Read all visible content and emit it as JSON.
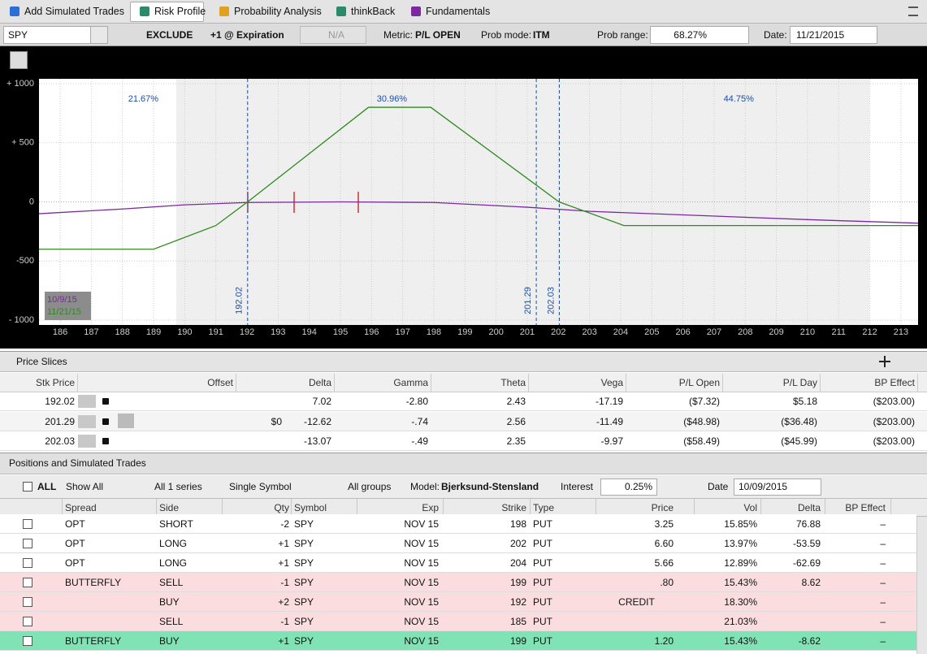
{
  "tabs": [
    "Add Simulated Trades",
    "Risk Profile",
    "Probability Analysis",
    "thinkBack",
    "Fundamentals"
  ],
  "controls": {
    "symbol": "SPY",
    "exclude": "EXCLUDE",
    "expiration": "+1 @ Expiration",
    "step": "N/A",
    "metric_label": "Metric:",
    "metric": "P/L OPEN",
    "prob_mode_label": "Prob mode:",
    "prob_mode": "ITM",
    "prob_range_label": "Prob range:",
    "prob_range": "68.27%",
    "date_label": "Date:",
    "date": "11/21/2015"
  },
  "chart_data": {
    "type": "line",
    "xlim": [
      185.32,
      213.55
    ],
    "xticks": [
      186,
      187,
      188,
      189,
      190,
      191,
      192,
      193,
      194,
      195,
      196,
      197,
      198,
      199,
      200,
      201,
      202,
      203,
      204,
      205,
      206,
      207,
      208,
      209,
      210,
      211,
      212,
      213
    ],
    "ylim": [
      -1041,
      1041
    ],
    "yticks": [
      {
        "value": 1000,
        "label": "+ 1000"
      },
      {
        "value": 500,
        "label": "+ 500"
      },
      0,
      -500,
      {
        "value": -1000,
        "label": "- 1000"
      }
    ],
    "grid": true,
    "legend": "lower left",
    "series": [
      {
        "name": "10/9/15",
        "color": "#7a2a9e",
        "x": [
          185.32,
          188,
          190,
          192,
          195,
          198,
          201,
          203,
          206,
          210,
          213.55
        ],
        "values": [
          -100,
          -60,
          -25,
          -5,
          0,
          -5,
          -45,
          -80,
          -110,
          -150,
          -180
        ]
      },
      {
        "name": "11/21/15",
        "color": "#2f8a1e",
        "x": [
          185.32,
          189,
          191,
          192.02,
          195.9,
          197.9,
          202.02,
          204.1,
          213.55
        ],
        "values": [
          -400,
          -400,
          -200,
          0,
          800,
          800,
          0,
          -200,
          -200
        ]
      }
    ],
    "markers": [
      192.02,
      201.29,
      202.03
    ],
    "probability_labels": [
      "21.67%",
      "30.96%",
      "44.75%"
    ]
  },
  "sections": {
    "price_slices": "Price Slices",
    "positions": "Positions and Simulated Trades"
  },
  "price_slices": {
    "columns": [
      "Stk Price",
      "Offset",
      "Delta",
      "Gamma",
      "Theta",
      "Vega",
      "P/L Open",
      "P/L Day",
      "BP Effect"
    ],
    "rows": [
      [
        "192.02",
        null,
        "7.02",
        "-2.80",
        "2.43",
        "-17.19",
        "($7.32)",
        "$5.18",
        "($203.00)"
      ],
      [
        "201.29",
        "$0",
        "-12.62",
        "-.74",
        "2.56",
        "-11.49",
        "($48.98)",
        "($36.48)",
        "($203.00)"
      ],
      [
        "202.03",
        null,
        "-13.07",
        "-.49",
        "2.35",
        "-9.97",
        "($58.49)",
        "($45.99)",
        "($203.00)"
      ]
    ]
  },
  "filters": {
    "all": "ALL",
    "show": "Show All",
    "series": "All 1 series",
    "symbol": "Single Symbol",
    "groups": "All groups",
    "model_label": "Model:",
    "model": "Bjerksund-Stensland",
    "interest_label": "Interest",
    "interest": "0.25%",
    "date_label": "Date",
    "date": "10/09/2015"
  },
  "positions": {
    "columns": [
      "Spread",
      "Side",
      "Qty",
      "Symbol",
      "Exp",
      "Strike",
      "Type",
      "Price",
      "Vol",
      "Delta",
      "BP Effect"
    ],
    "rows": [
      {
        "color": "#ffffff",
        "cells": [
          "OPT",
          "SHORT",
          "-2",
          "SPY",
          "NOV 15",
          "198",
          "PUT",
          "3.25",
          "15.85%",
          "76.88",
          "–"
        ]
      },
      {
        "color": "#ffffff",
        "cells": [
          "OPT",
          "LONG",
          "+1",
          "SPY",
          "NOV 15",
          "202",
          "PUT",
          "6.60",
          "13.97%",
          "-53.59",
          "–"
        ]
      },
      {
        "color": "#ffffff",
        "cells": [
          "OPT",
          "LONG",
          "+1",
          "SPY",
          "NOV 15",
          "204",
          "PUT",
          "5.66",
          "12.89%",
          "-62.69",
          "–"
        ]
      },
      {
        "color": "#fbdde0",
        "cells": [
          "BUTTERFLY",
          "SELL",
          "-1",
          "SPY",
          "NOV 15",
          "199",
          "PUT",
          ".80",
          "15.43%",
          "8.62",
          "–"
        ]
      },
      {
        "color": "#fbdde0",
        "cells": [
          null,
          "BUY",
          "+2",
          "SPY",
          "NOV 15",
          "192",
          "PUT",
          "CREDIT",
          "18.30%",
          null,
          "–"
        ]
      },
      {
        "color": "#fbdde0",
        "cells": [
          null,
          "SELL",
          "-1",
          "SPY",
          "NOV 15",
          "185",
          "PUT",
          null,
          "21.03%",
          null,
          "–"
        ]
      },
      {
        "color": "#7fe3b5",
        "cells": [
          "BUTTERFLY",
          "BUY",
          "+1",
          "SPY",
          "NOV 15",
          "199",
          "PUT",
          "1.20",
          "15.43%",
          "-8.62",
          "–"
        ]
      }
    ]
  }
}
